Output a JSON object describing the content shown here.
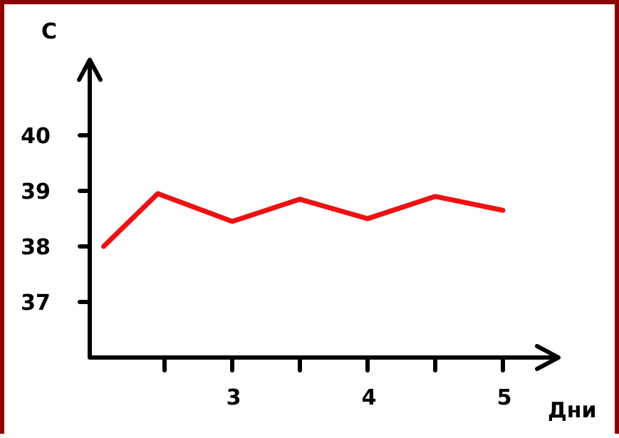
{
  "chart_data": {
    "type": "line",
    "title": "",
    "ylabel": "C",
    "xlabel": "Дни",
    "y_ticks": [
      37,
      38,
      39,
      40
    ],
    "y_tick_labels": [
      "37",
      "38",
      "39",
      "40"
    ],
    "x_ticks": [
      2.5,
      3,
      3.5,
      4,
      4.5,
      5
    ],
    "x_tick_labels": [
      {
        "x": 3,
        "label": "3"
      },
      {
        "x": 4,
        "label": "4"
      },
      {
        "x": 5,
        "label": "5"
      }
    ],
    "xlim": [
      1.5,
      5.5
    ],
    "ylim": [
      36,
      41.5
    ],
    "grid": false,
    "series": [
      {
        "color": "#ee1111",
        "points": [
          {
            "x": 2.05,
            "y": 38.0
          },
          {
            "x": 2.45,
            "y": 38.95
          },
          {
            "x": 3.0,
            "y": 38.45
          },
          {
            "x": 3.5,
            "y": 38.85
          },
          {
            "x": 4.0,
            "y": 38.5
          },
          {
            "x": 4.5,
            "y": 38.9
          },
          {
            "x": 5.0,
            "y": 38.65
          }
        ]
      }
    ]
  }
}
